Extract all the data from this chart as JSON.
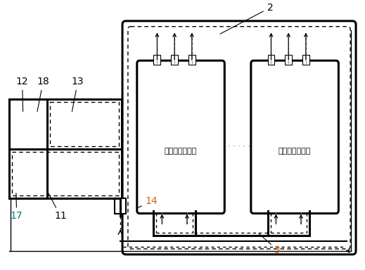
{
  "bg_color": "#ffffff",
  "text_sw": "钒装中置开关柜",
  "lw_thick": 2.2,
  "lw_med": 1.5,
  "lw_thin": 1.0,
  "lw_dot": 1.0
}
